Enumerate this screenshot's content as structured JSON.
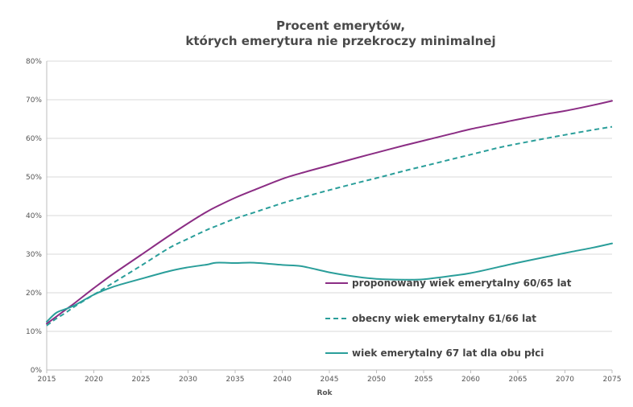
{
  "chart_data": {
    "type": "line",
    "title_lines": [
      "Procent emerytów,",
      "których emerytura nie przekroczy minimalnej"
    ],
    "xlabel": "Rok",
    "ylabel": "",
    "xlim": [
      2015,
      2075
    ],
    "ylim": [
      0,
      80
    ],
    "x_ticks": [
      2015,
      2020,
      2025,
      2030,
      2035,
      2040,
      2045,
      2050,
      2055,
      2060,
      2065,
      2070,
      2075
    ],
    "y_ticks": [
      0,
      10,
      20,
      30,
      40,
      50,
      60,
      70,
      80
    ],
    "y_tick_labels": [
      "0%",
      "10%",
      "20%",
      "30%",
      "40%",
      "50%",
      "60%",
      "70%",
      "80%"
    ],
    "grid": "horizontal",
    "legend_position": "center-right",
    "x": [
      2015,
      2016,
      2017,
      2018,
      2020,
      2022,
      2025,
      2028,
      2030,
      2032,
      2033,
      2035,
      2037,
      2040,
      2042,
      2045,
      2048,
      2050,
      2053,
      2055,
      2058,
      2060,
      2063,
      2065,
      2068,
      2070,
      2073,
      2075
    ],
    "series": [
      {
        "name": "proponowany wiek emerytalny 60/65 lat",
        "color": "#8b2d84",
        "dash": "solid",
        "values": [
          12,
          13.8,
          15.6,
          17.4,
          21.2,
          24.8,
          29.8,
          34.8,
          38,
          41,
          42.3,
          44.6,
          46.6,
          49.5,
          51,
          53,
          55,
          56.3,
          58.2,
          59.4,
          61.2,
          62.4,
          63.9,
          64.9,
          66.3,
          67.1,
          68.6,
          69.7
        ]
      },
      {
        "name": "obecny wiek emerytalny 61/66 lat",
        "color": "#2a9e9a",
        "dash": "dashed",
        "values": [
          11.5,
          13.3,
          14.8,
          16.5,
          19.5,
          22.5,
          27,
          31.6,
          34,
          36.3,
          37.3,
          39.2,
          40.8,
          43.2,
          44.6,
          46.6,
          48.5,
          49.7,
          51.6,
          52.8,
          54.6,
          55.8,
          57.6,
          58.6,
          60,
          60.9,
          62.2,
          63
        ]
      },
      {
        "name": "wiek emerytalny 67 lat dla obu płci",
        "color": "#2a9e9a",
        "dash": "solid",
        "values": [
          12.5,
          14.8,
          15.8,
          16.8,
          19.5,
          21.5,
          23.6,
          25.6,
          26.6,
          27.3,
          27.8,
          27.7,
          27.8,
          27.2,
          26.9,
          25.3,
          24.1,
          23.6,
          23.4,
          23.5,
          24.4,
          25.1,
          26.7,
          27.8,
          29.3,
          30.3,
          31.7,
          32.8
        ]
      }
    ]
  }
}
